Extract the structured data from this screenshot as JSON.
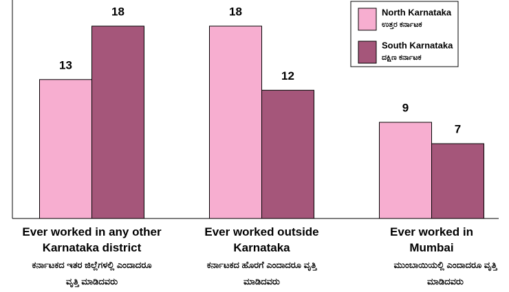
{
  "chart_data": {
    "type": "bar",
    "categories": [
      "Ever worked in any other Karnataka district",
      "Ever worked outside Karnataka",
      "Ever worked in Mumbai"
    ],
    "categories_kannada": [
      "ಕರ್ನಾಟಕದ ಇತರ ಜಿಲ್ಲೆಗಳಲ್ಲಿ ಎಂದಾದರೂ ವೃತ್ತಿ ಮಾಡಿದವರು",
      "ಕರ್ನಾಟಕದ ಹೊರಗೆ ಎಂದಾದರೂ ವೃತ್ತಿ ಮಾಡಿದವರು",
      "ಮುಂಬಾಯಿಯಲ್ಲಿ ಎಂದಾದರೂ ವೃತ್ತಿ ಮಾಡಿದವರು"
    ],
    "series": [
      {
        "name": "North Karnataka",
        "name_kannada": "ಉತ್ತರ ಕರ್ನಾಟಕ",
        "color": "#f7aed0",
        "values": [
          13,
          18,
          9
        ]
      },
      {
        "name": "South Karnataka",
        "name_kannada": "ದಕ್ಷಿಣ ಕರ್ನಾಟಕ",
        "color": "#a5567a",
        "values": [
          18,
          12,
          7
        ]
      }
    ],
    "ylim": [
      0,
      18
    ],
    "legend": "upper right"
  }
}
